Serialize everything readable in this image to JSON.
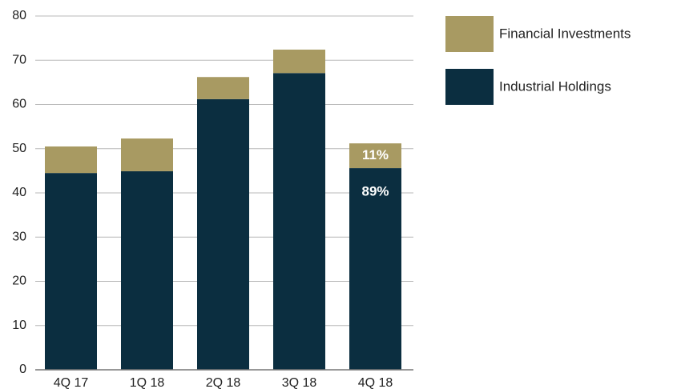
{
  "chart_data": {
    "type": "stacked_bar",
    "categories": [
      "4Q 17",
      "1Q 18",
      "2Q 18",
      "3Q 18",
      "4Q 18"
    ],
    "series": [
      {
        "name": "Industrial Holdings",
        "color": "#0b2e40",
        "values": [
          44.5,
          44.9,
          61.2,
          67.1,
          45.6
        ]
      },
      {
        "name": "Financial Investments",
        "color": "#a89a62",
        "values": [
          6.0,
          7.4,
          5.0,
          5.3,
          5.6
        ]
      }
    ],
    "annotations": [
      {
        "text": "89%",
        "series": "Industrial Holdings",
        "category": "4Q 18"
      },
      {
        "text": "11%",
        "series": "Financial Investments",
        "category": "4Q 18"
      }
    ],
    "ylim": [
      0,
      80
    ],
    "yticks": [
      0,
      10,
      20,
      30,
      40,
      50,
      60,
      70,
      80
    ],
    "grid": true,
    "legend": "right"
  }
}
